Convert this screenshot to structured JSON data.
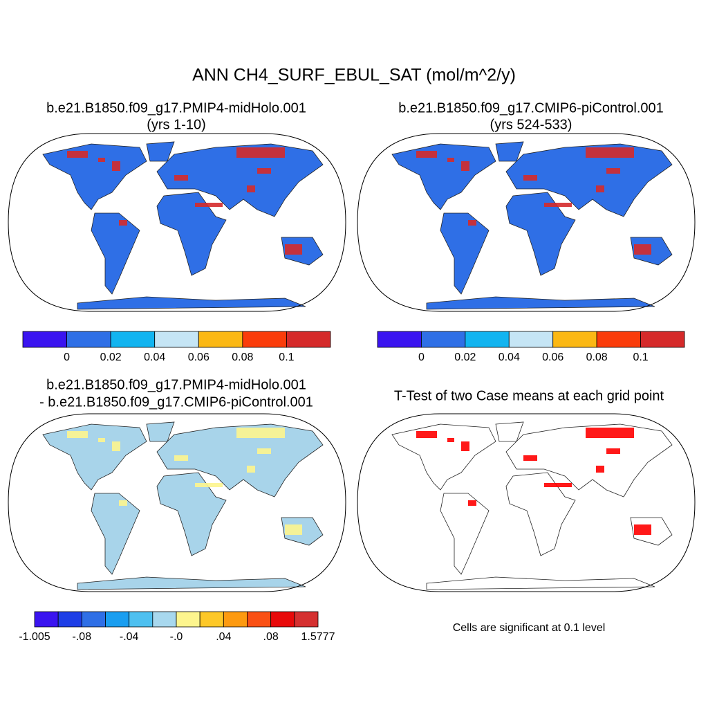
{
  "title": "ANN CH4_SURF_EBUL_SAT (mol/m^2/y)",
  "panels": [
    {
      "title": [
        "b.e21.B1850.f09_g17.PMIP4-midHolo.001",
        "(yrs 1-10)"
      ],
      "colorbar": {
        "colors": [
          "#3a14f0",
          "#2f6fe6",
          "#12b4f0",
          "#c5e5f5",
          "#fbb814",
          "#fa3c0a",
          "#d52a2a"
        ],
        "labels": [
          null,
          "0",
          "0.02",
          "0.04",
          "0.06",
          "0.08",
          "0.1",
          null
        ]
      }
    },
    {
      "title": [
        "b.e21.B1850.f09_g17.CMIP6-piControl.001",
        "(yrs 524-533)"
      ],
      "colorbar": {
        "colors": [
          "#3a14f0",
          "#2f6fe6",
          "#12b4f0",
          "#c5e5f5",
          "#fbb814",
          "#fa3c0a",
          "#d52a2a"
        ],
        "labels": [
          null,
          "0",
          "0.02",
          "0.04",
          "0.06",
          "0.08",
          "0.1",
          null
        ]
      }
    },
    {
      "title": [
        "b.e21.B1850.f09_g17.PMIP4-midHolo.001",
        "- b.e21.B1850.f09_g17.CMIP6-piControl.001"
      ],
      "colorbar": {
        "colors": [
          "#3a14f0",
          "#1e3ee6",
          "#2f6fe6",
          "#1a9ef0",
          "#4ec0f0",
          "#a8d8ee",
          "#fdf58e",
          "#fdc828",
          "#fd9a10",
          "#fa5014",
          "#e80a0a",
          "#d53030"
        ],
        "labels": [
          "-1.005",
          null,
          "-.08",
          null,
          "-.04",
          null,
          "-.0",
          null,
          ".04",
          null,
          ".08",
          null,
          "1.5777"
        ]
      }
    },
    {
      "title": [
        "T-Test of two Case means at each grid point"
      ],
      "note": "Cells are significant at 0.1 level"
    }
  ]
}
